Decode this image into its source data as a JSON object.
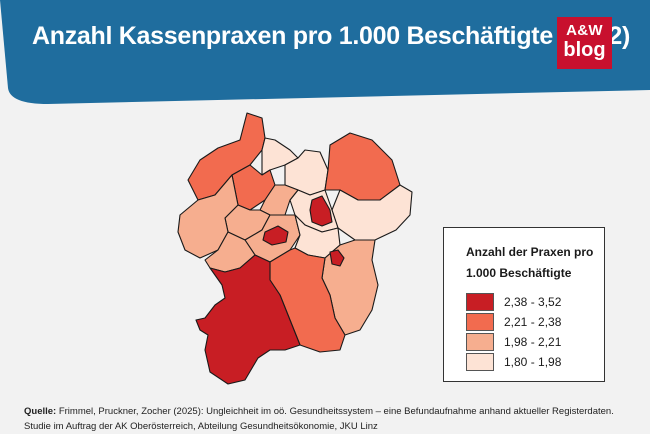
{
  "header": {
    "title": "Anzahl Kassenpraxen pro 1.000 Beschäftigte (2022)",
    "background_color": "#1f6d9e",
    "logo_line1": "A&W",
    "logo_line2": "blog",
    "logo_color": "#c8102e"
  },
  "map": {
    "region": "Oberösterreich",
    "colors": {
      "class_1": "#c81e24",
      "class_2": "#f26b4f",
      "class_3": "#f6ae8f",
      "class_4": "#fde3d5"
    }
  },
  "legend": {
    "title": "Anzahl der Praxen pro 1.000 Beschäftigte",
    "items": [
      {
        "label": "2,38 - 3,52",
        "color": "#c81e24"
      },
      {
        "label": "2,21 - 2,38",
        "color": "#f26b4f"
      },
      {
        "label": "1,98 - 2,21",
        "color": "#f6ae8f"
      },
      {
        "label": "1,80 - 1,98",
        "color": "#fde3d5"
      }
    ]
  },
  "source": {
    "label": "Quelle:",
    "text": " Frimmel, Pruckner, Zocher (2025): Ungleichheit im oö. Gesundheitssystem – eine Befundaufnahme anhand aktueller Registerdaten. Studie im Auftrag der AK Oberösterreich, Abteilung Gesundheitsökonomie, JKU Linz"
  }
}
